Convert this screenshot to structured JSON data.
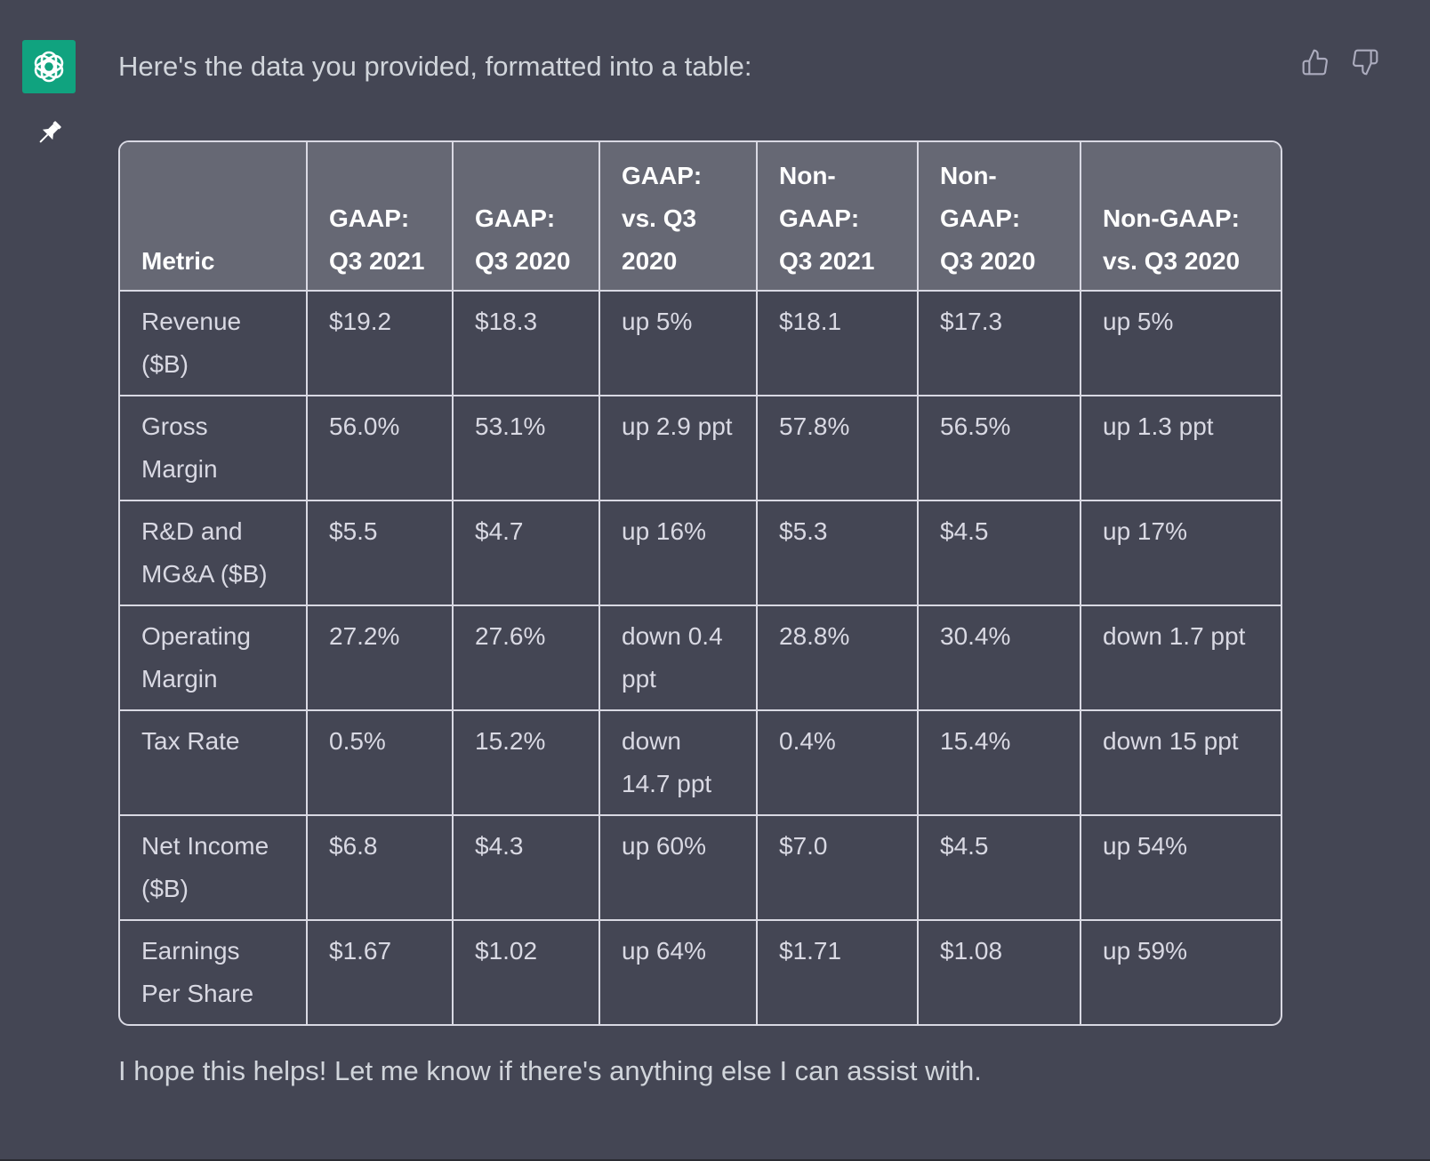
{
  "message": {
    "intro": "Here's the data you provided, formatted into a table:",
    "closing": "I hope this helps! Let me know if there's anything else I can assist with."
  },
  "icons": {
    "avatar": "openai-logo-icon",
    "pin": "pin-icon",
    "thumbs_up": "thumbs-up-icon",
    "thumbs_down": "thumbs-down-icon"
  },
  "colors": {
    "background": "#444654",
    "avatar_bg": "#10a37f",
    "header_bg": "#666874",
    "border": "#d9d9e3",
    "text": "#d1d5db"
  },
  "table": {
    "headers": [
      "Metric",
      "GAAP: Q3 2021",
      "GAAP: Q3 2020",
      "GAAP: vs. Q3 2020",
      "Non-GAAP: Q3 2021",
      "Non-GAAP: Q3 2020",
      "Non-GAAP: vs. Q3 2020"
    ],
    "rows": [
      [
        "Revenue ($B)",
        "$19.2",
        "$18.3",
        "up 5%",
        "$18.1",
        "$17.3",
        "up 5%"
      ],
      [
        "Gross Margin",
        "56.0%",
        "53.1%",
        "up 2.9 ppt",
        "57.8%",
        "56.5%",
        "up 1.3 ppt"
      ],
      [
        "R&D and MG&A ($B)",
        "$5.5",
        "$4.7",
        "up 16%",
        "$5.3",
        "$4.5",
        "up 17%"
      ],
      [
        "Operating Margin",
        "27.2%",
        "27.6%",
        "down 0.4 ppt",
        "28.8%",
        "30.4%",
        "down 1.7 ppt"
      ],
      [
        "Tax Rate",
        "0.5%",
        "15.2%",
        "down 14.7 ppt",
        "0.4%",
        "15.4%",
        "down 15 ppt"
      ],
      [
        "Net Income ($B)",
        "$6.8",
        "$4.3",
        "up 60%",
        "$7.0",
        "$4.5",
        "up 54%"
      ],
      [
        "Earnings Per Share",
        "$1.67",
        "$1.02",
        "up 64%",
        "$1.71",
        "$1.08",
        "up 59%"
      ]
    ]
  }
}
